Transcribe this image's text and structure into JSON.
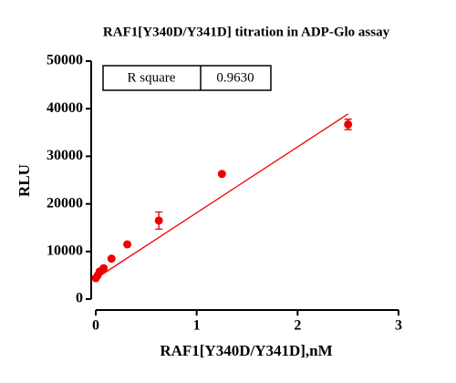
{
  "chart_data": {
    "type": "scatter",
    "title": "RAF1[Y340D/Y341D] titration in ADP-Glo assay",
    "x_label": "RAF1[Y340D/Y341D],nM",
    "y_label": "RLU",
    "series": [
      {
        "name": "RAF1[Y340D/Y341D]",
        "color": "#ee0000",
        "x": [
          0,
          0.0195,
          0.039,
          0.078,
          0.156,
          0.3125,
          0.625,
          1.25,
          2.5
        ],
        "values": [
          4400,
          5000,
          5800,
          6500,
          8500,
          11500,
          16500,
          26300,
          36700
        ],
        "errors": [
          null,
          null,
          null,
          null,
          null,
          null,
          1800,
          null,
          1100
        ]
      }
    ],
    "fit": {
      "color": "#ee0000",
      "x": [
        0,
        2.5
      ],
      "values": [
        4300,
        38900
      ]
    },
    "annotation": {
      "label": "R square",
      "value": "0.9630"
    },
    "xlim": [
      0,
      3
    ],
    "xticks": [
      0,
      1,
      2,
      3
    ],
    "ylim": [
      0,
      50000
    ],
    "yticks": [
      0,
      10000,
      20000,
      30000,
      40000,
      50000
    ]
  }
}
